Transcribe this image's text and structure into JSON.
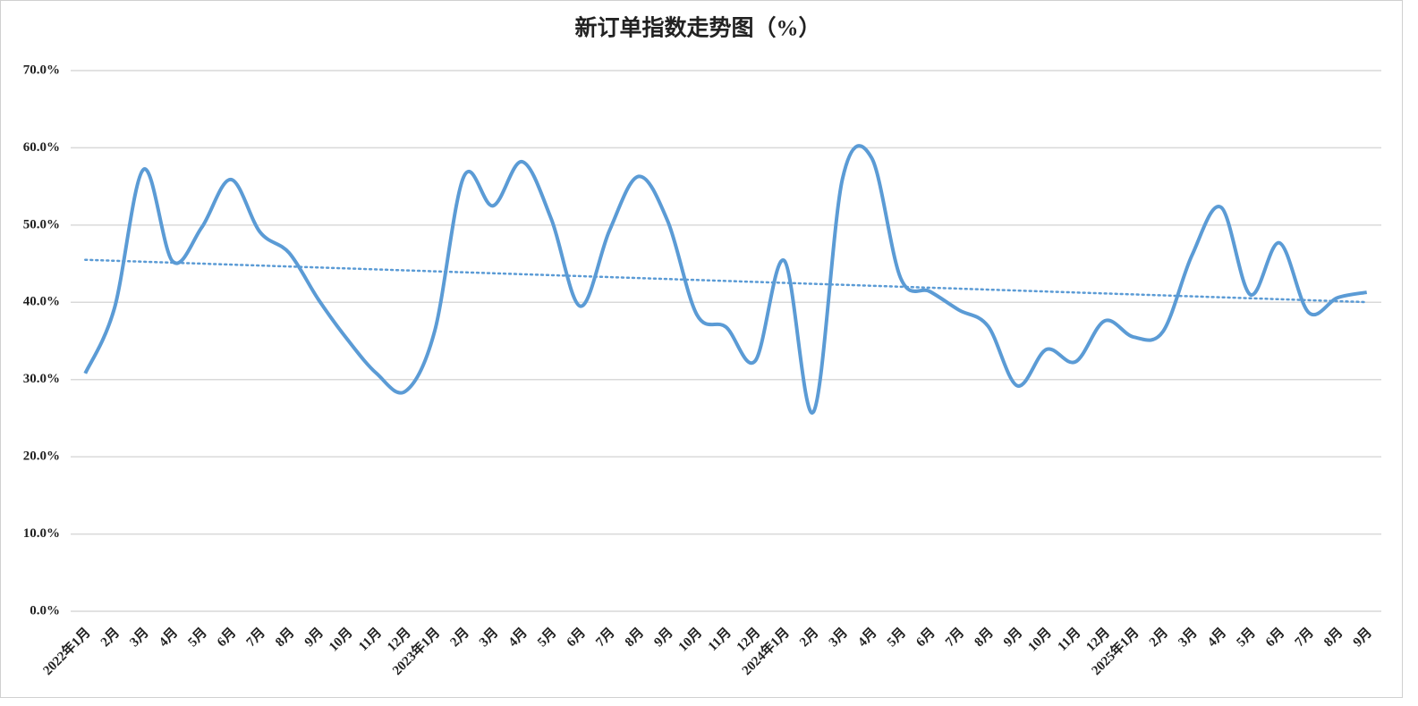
{
  "chart_data": {
    "type": "line",
    "title": "新订单指数走势图（%）",
    "categories": [
      "2022年1月",
      "2月",
      "3月",
      "4月",
      "5月",
      "6月",
      "7月",
      "8月",
      "9月",
      "10月",
      "11月",
      "12月",
      "2023年1月",
      "2月",
      "3月",
      "4月",
      "5月",
      "6月",
      "7月",
      "8月",
      "9月",
      "10月",
      "11月",
      "12月",
      "2024年1月",
      "2月",
      "3月",
      "4月",
      "5月",
      "6月",
      "7月",
      "8月",
      "9月",
      "10月",
      "11月",
      "12月",
      "2025年1月",
      "2月",
      "3月",
      "4月",
      "5月",
      "6月",
      "7月",
      "8月",
      "9月"
    ],
    "series": [
      {
        "color": "#5b9bd5",
        "values": [
          30.8,
          39.2,
          57.2,
          45.3,
          49.7,
          55.9,
          49.1,
          46.4,
          40.4,
          35.2,
          30.8,
          28.5,
          36.3,
          56.3,
          52.5,
          58.2,
          50.8,
          39.5,
          49.3,
          56.3,
          50.5,
          38.4,
          36.8,
          32.4,
          45.4,
          25.8,
          56.0,
          58.7,
          43.1,
          41.4,
          39.0,
          36.9,
          29.2,
          33.9,
          32.3,
          37.6,
          35.5,
          36.2,
          46.1,
          52.3,
          41.0,
          47.7,
          38.7,
          40.6,
          41.3
        ]
      }
    ],
    "ylim": [
      0,
      70
    ],
    "yticks": [
      {
        "value": 0,
        "label": "0.0%"
      },
      {
        "value": 10,
        "label": "10.0%"
      },
      {
        "value": 20,
        "label": "20.0%"
      },
      {
        "value": 30,
        "label": "30.0%"
      },
      {
        "value": 40,
        "label": "40.0%"
      },
      {
        "value": 50,
        "label": "50.0%"
      },
      {
        "value": 60,
        "label": "60.0%"
      },
      {
        "value": 70,
        "label": "70.0%"
      }
    ],
    "grid": true,
    "smooth": true,
    "trendline": true
  }
}
